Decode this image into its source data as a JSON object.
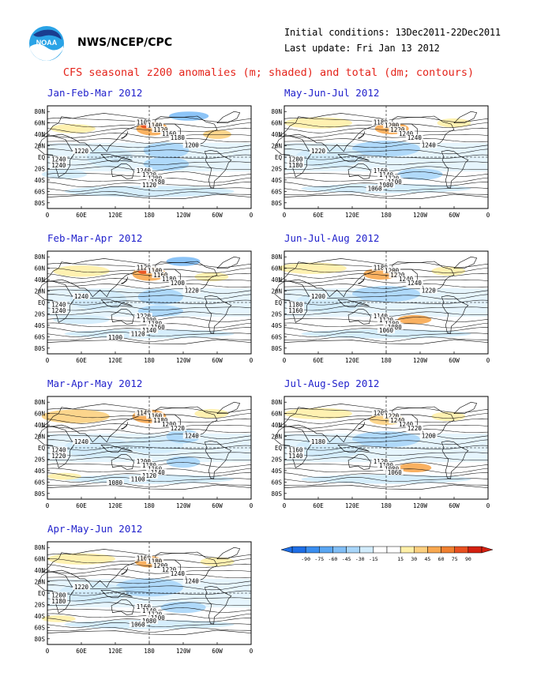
{
  "header": {
    "org": "NWS/NCEP/CPC",
    "logo_text": "NOAA",
    "initial_conditions": "Initial conditions: 13Dec2011-22Dec2011",
    "last_update": "Last update: Fri Jan 13 2012",
    "title": "CFS seasonal z200 anomalies (m; shaded) and total (dm; contours)"
  },
  "colors": {
    "title": "#e4241b",
    "panel_title": "#2222cc",
    "palette": [
      "#1e6ee6",
      "#3a8ef0",
      "#5aa6f2",
      "#80bef6",
      "#a8d6fa",
      "#d2ecfc",
      "#ffffff",
      "#ffffff",
      "#fff0a8",
      "#fcd080",
      "#f8a850",
      "#f08030",
      "#e85020",
      "#d42010"
    ]
  },
  "axes": {
    "lat_labels": [
      "80N",
      "60N",
      "40N",
      "20N",
      "EQ",
      "20S",
      "40S",
      "60S",
      "80S"
    ],
    "lon_labels": [
      "0",
      "60E",
      "120E",
      "180",
      "120W",
      "60W",
      "0"
    ]
  },
  "colorbar": {
    "ticks": [
      "-90",
      "-75",
      "-60",
      "-45",
      "-30",
      "-15",
      "15",
      "30",
      "45",
      "60",
      "75",
      "90"
    ]
  },
  "panels": [
    {
      "title": "Jan-Feb-Mar 2012",
      "labels": [
        "1100",
        "1140",
        "1120",
        "1160",
        "1180",
        "1200",
        "1220",
        "1240",
        "1240",
        "1240",
        "1220",
        "1200",
        "1180",
        "1120"
      ],
      "blobs": [
        {
          "lon": 185,
          "lat": 50,
          "rx": 28,
          "ry": 12,
          "lvl": 10
        },
        {
          "lon": 175,
          "lat": 55,
          "rx": 10,
          "ry": 5,
          "lvl": 12
        },
        {
          "lon": 45,
          "lat": 50,
          "rx": 40,
          "ry": 8,
          "lvl": 8
        },
        {
          "lon": 300,
          "lat": 40,
          "rx": 25,
          "ry": 8,
          "lvl": 9
        },
        {
          "lon": 250,
          "lat": 72,
          "rx": 35,
          "ry": 8,
          "lvl": 3
        },
        {
          "lon": 210,
          "lat": 12,
          "rx": 40,
          "ry": 14,
          "lvl": 4
        },
        {
          "lon": 210,
          "lat": -12,
          "rx": 40,
          "ry": 12,
          "lvl": 4
        },
        {
          "lon": 110,
          "lat": 0,
          "rx": 40,
          "ry": 18,
          "lvl": 5
        },
        {
          "lon": 180,
          "lat": -60,
          "rx": 150,
          "ry": 10,
          "lvl": 5
        },
        {
          "lon": 30,
          "lat": -30,
          "rx": 40,
          "ry": 8,
          "lvl": 5
        }
      ]
    },
    {
      "title": "Feb-Mar-Apr 2012",
      "labels": [
        "1120",
        "1140",
        "1160",
        "1180",
        "1200",
        "1220",
        "1240",
        "1240",
        "1240",
        "1220",
        "1200",
        "1180",
        "1160",
        "1140",
        "1120",
        "1100"
      ],
      "blobs": [
        {
          "lon": 180,
          "lat": 50,
          "rx": 30,
          "ry": 12,
          "lvl": 10
        },
        {
          "lon": 170,
          "lat": 55,
          "rx": 10,
          "ry": 5,
          "lvl": 12
        },
        {
          "lon": 60,
          "lat": 55,
          "rx": 50,
          "ry": 10,
          "lvl": 8
        },
        {
          "lon": 290,
          "lat": 45,
          "rx": 30,
          "ry": 8,
          "lvl": 8
        },
        {
          "lon": 240,
          "lat": 72,
          "rx": 30,
          "ry": 8,
          "lvl": 3
        },
        {
          "lon": 200,
          "lat": 10,
          "rx": 40,
          "ry": 14,
          "lvl": 4
        },
        {
          "lon": 200,
          "lat": -15,
          "rx": 40,
          "ry": 10,
          "lvl": 4
        },
        {
          "lon": 90,
          "lat": 5,
          "rx": 50,
          "ry": 18,
          "lvl": 5
        },
        {
          "lon": 180,
          "lat": -55,
          "rx": 150,
          "ry": 8,
          "lvl": 5
        },
        {
          "lon": 60,
          "lat": -30,
          "rx": 50,
          "ry": 8,
          "lvl": 5
        }
      ]
    },
    {
      "title": "Mar-Apr-May 2012",
      "labels": [
        "1140",
        "1160",
        "1180",
        "1200",
        "1220",
        "1240",
        "1240",
        "1240",
        "1220",
        "1200",
        "1180",
        "1160",
        "1140",
        "1120",
        "1100",
        "1080"
      ],
      "blobs": [
        {
          "lon": 180,
          "lat": 55,
          "rx": 30,
          "ry": 12,
          "lvl": 10
        },
        {
          "lon": 50,
          "lat": 55,
          "rx": 60,
          "ry": 12,
          "lvl": 9
        },
        {
          "lon": 290,
          "lat": 60,
          "rx": 30,
          "ry": 8,
          "lvl": 8
        },
        {
          "lon": 190,
          "lat": 5,
          "rx": 50,
          "ry": 15,
          "lvl": 5
        },
        {
          "lon": 240,
          "lat": 20,
          "rx": 30,
          "ry": 12,
          "lvl": 4
        },
        {
          "lon": 240,
          "lat": -25,
          "rx": 30,
          "ry": 10,
          "lvl": 4
        },
        {
          "lon": 90,
          "lat": 0,
          "rx": 60,
          "ry": 18,
          "lvl": 5
        },
        {
          "lon": 180,
          "lat": -55,
          "rx": 150,
          "ry": 8,
          "lvl": 5
        },
        {
          "lon": 30,
          "lat": -50,
          "rx": 30,
          "ry": 6,
          "lvl": 8
        }
      ]
    },
    {
      "title": "Apr-May-Jun 2012",
      "labels": [
        "1160",
        "1180",
        "1200",
        "1220",
        "1240",
        "1240",
        "1220",
        "1200",
        "1180",
        "1160",
        "1140",
        "1120",
        "1100",
        "1080",
        "1060"
      ],
      "blobs": [
        {
          "lon": 180,
          "lat": 55,
          "rx": 25,
          "ry": 10,
          "lvl": 10
        },
        {
          "lon": 60,
          "lat": 60,
          "rx": 60,
          "ry": 10,
          "lvl": 8
        },
        {
          "lon": 300,
          "lat": 55,
          "rx": 30,
          "ry": 8,
          "lvl": 8
        },
        {
          "lon": 180,
          "lat": 10,
          "rx": 60,
          "ry": 16,
          "lvl": 4
        },
        {
          "lon": 80,
          "lat": 0,
          "rx": 60,
          "ry": 18,
          "lvl": 5
        },
        {
          "lon": 240,
          "lat": -25,
          "rx": 40,
          "ry": 10,
          "lvl": 4
        },
        {
          "lon": 180,
          "lat": -55,
          "rx": 150,
          "ry": 8,
          "lvl": 5
        },
        {
          "lon": 20,
          "lat": -45,
          "rx": 30,
          "ry": 6,
          "lvl": 8
        }
      ]
    },
    {
      "title": "May-Jun-Jul 2012",
      "labels": [
        "1180",
        "1200",
        "1220",
        "1240",
        "1240",
        "1240",
        "1220",
        "1200",
        "1180",
        "1160",
        "1140",
        "1120",
        "1100",
        "1080",
        "1060"
      ],
      "blobs": [
        {
          "lon": 190,
          "lat": 50,
          "rx": 30,
          "ry": 10,
          "lvl": 10
        },
        {
          "lon": 60,
          "lat": 60,
          "rx": 60,
          "ry": 10,
          "lvl": 8
        },
        {
          "lon": 300,
          "lat": 60,
          "rx": 30,
          "ry": 8,
          "lvl": 8
        },
        {
          "lon": 180,
          "lat": 15,
          "rx": 60,
          "ry": 14,
          "lvl": 4
        },
        {
          "lon": 80,
          "lat": 0,
          "rx": 60,
          "ry": 18,
          "lvl": 5
        },
        {
          "lon": 240,
          "lat": -30,
          "rx": 40,
          "ry": 10,
          "lvl": 4
        },
        {
          "lon": 180,
          "lat": -55,
          "rx": 150,
          "ry": 8,
          "lvl": 5
        }
      ]
    },
    {
      "title": "Jun-Jul-Aug 2012",
      "labels": [
        "1180",
        "1200",
        "1220",
        "1240",
        "1240",
        "1220",
        "1200",
        "1180",
        "1160",
        "1140",
        "1120",
        "1100",
        "1080",
        "1060"
      ],
      "blobs": [
        {
          "lon": 170,
          "lat": 50,
          "rx": 30,
          "ry": 10,
          "lvl": 10
        },
        {
          "lon": 50,
          "lat": 60,
          "rx": 60,
          "ry": 10,
          "lvl": 8
        },
        {
          "lon": 290,
          "lat": 55,
          "rx": 30,
          "ry": 8,
          "lvl": 8
        },
        {
          "lon": 180,
          "lat": 15,
          "rx": 60,
          "ry": 14,
          "lvl": 4
        },
        {
          "lon": 80,
          "lat": 0,
          "rx": 60,
          "ry": 18,
          "lvl": 5
        },
        {
          "lon": 230,
          "lat": -30,
          "rx": 30,
          "ry": 8,
          "lvl": 10
        },
        {
          "lon": 180,
          "lat": -55,
          "rx": 150,
          "ry": 8,
          "lvl": 5
        }
      ]
    },
    {
      "title": "Jul-Aug-Sep 2012",
      "labels": [
        "1200",
        "1220",
        "1240",
        "1240",
        "1220",
        "1200",
        "1180",
        "1160",
        "1140",
        "1120",
        "1100",
        "1080",
        "1060"
      ],
      "blobs": [
        {
          "lon": 180,
          "lat": 50,
          "rx": 30,
          "ry": 10,
          "lvl": 9
        },
        {
          "lon": 60,
          "lat": 60,
          "rx": 60,
          "ry": 10,
          "lvl": 8
        },
        {
          "lon": 290,
          "lat": 55,
          "rx": 30,
          "ry": 8,
          "lvl": 8
        },
        {
          "lon": 180,
          "lat": 15,
          "rx": 60,
          "ry": 14,
          "lvl": 4
        },
        {
          "lon": 80,
          "lat": 0,
          "rx": 60,
          "ry": 18,
          "lvl": 5
        },
        {
          "lon": 230,
          "lat": -35,
          "rx": 30,
          "ry": 8,
          "lvl": 10
        },
        {
          "lon": 180,
          "lat": -55,
          "rx": 150,
          "ry": 8,
          "lvl": 5
        }
      ]
    }
  ]
}
